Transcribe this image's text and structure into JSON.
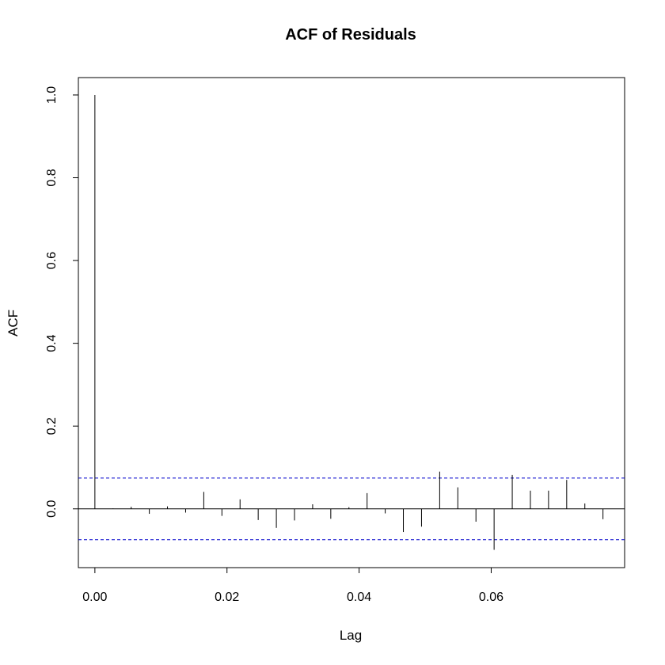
{
  "chart_data": {
    "type": "bar",
    "title": "ACF of Residuals",
    "xlabel": "Lag",
    "ylabel": "ACF",
    "x_ticks": [
      0.0,
      0.02,
      0.04,
      0.06
    ],
    "x_tick_labels": [
      "0.00",
      "0.02",
      "0.04",
      "0.06"
    ],
    "y_ticks": [
      0.0,
      0.2,
      0.4,
      0.6,
      0.8,
      1.0
    ],
    "y_tick_labels": [
      "0.0",
      "0.2",
      "0.4",
      "0.6",
      "0.8",
      "1.0"
    ],
    "xlim": [
      -0.0025,
      0.0802
    ],
    "ylim": [
      -0.142,
      1.042
    ],
    "lags": [
      0.0,
      0.002747,
      0.005495,
      0.008242,
      0.010989,
      0.013736,
      0.016484,
      0.019231,
      0.021978,
      0.024725,
      0.027473,
      0.03022,
      0.032967,
      0.035714,
      0.038462,
      0.041209,
      0.043956,
      0.046703,
      0.049451,
      0.052198,
      0.054945,
      0.057692,
      0.06044,
      0.063187,
      0.065934,
      0.068681,
      0.071429,
      0.074176,
      0.076923
    ],
    "acf": [
      1.0,
      0.001,
      0.005,
      -0.012,
      0.006,
      -0.009,
      0.041,
      -0.017,
      0.023,
      -0.027,
      -0.046,
      -0.028,
      0.011,
      -0.024,
      0.004,
      0.038,
      -0.011,
      -0.056,
      -0.043,
      0.09,
      0.052,
      -0.031,
      -0.099,
      0.082,
      0.044,
      0.044,
      0.07,
      0.013,
      -0.025
    ],
    "confidence_bound": 0.0745,
    "colors": {
      "spike": "#000000",
      "confidence_line": "#0000cc",
      "zero_line": "#000000",
      "frame": "#000000"
    }
  }
}
